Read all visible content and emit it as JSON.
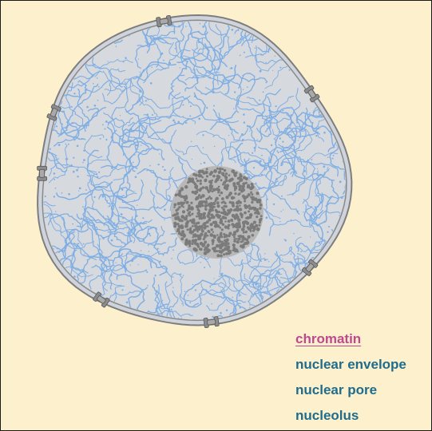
{
  "colors": {
    "background": "#fdf1cd",
    "envelope_fill": "#cfd4dc",
    "envelope_stroke": "#7d7d7d",
    "nucleoplasm": "#d6d9de",
    "chromatin": "#7faee3",
    "nucleolus_fill": "#b8b8b8",
    "nucleolus_granules": "#7b7b7b",
    "pore": "#8c8c8c",
    "label_active": "#c0488e",
    "label_default": "#1f6c8c"
  },
  "parts": {
    "chromatin": {
      "icon": "chromatin-fibers"
    },
    "nuclear_envelope": {
      "icon": "double-membrane"
    },
    "nuclear_pore": {
      "icon": "pore-complex",
      "count": 7
    },
    "nucleolus": {
      "icon": "granular-body"
    }
  },
  "legend": [
    {
      "key": "chromatin",
      "label": "chromatin",
      "active": true
    },
    {
      "key": "nuclear_envelope",
      "label": "nuclear envelope",
      "active": false
    },
    {
      "key": "nuclear_pore",
      "label": "nuclear pore",
      "active": false
    },
    {
      "key": "nucleolus",
      "label": "nucleolus",
      "active": false
    }
  ]
}
